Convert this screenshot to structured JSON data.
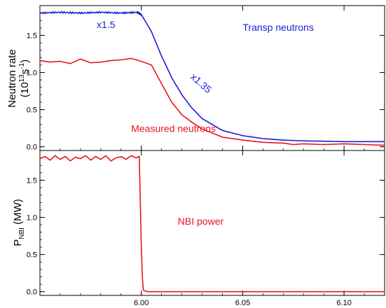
{
  "colors": {
    "measured": "#e8141c",
    "transp": "#1c1cd8",
    "nbi": "#e8141c",
    "axis": "#000000"
  },
  "chart_data": [
    {
      "type": "line",
      "ylabel_main": "Neutron rate",
      "ylabel_sub_prefix": "(10",
      "ylabel_sub_exp1": "13",
      "ylabel_sub_mid": "s",
      "ylabel_sub_exp2": "-1",
      "ylabel_sub_suffix": ")",
      "xlim": [
        5.95,
        6.12
      ],
      "ylim": [
        -0.05,
        1.9
      ],
      "xticks": [
        "6.00",
        "6.05",
        "6.10"
      ],
      "xtick_values": [
        6.0,
        6.05,
        6.1
      ],
      "yticks": [
        "0.0",
        "0.5",
        "1.0",
        "1.5"
      ],
      "ytick_values": [
        0.0,
        0.5,
        1.0,
        1.5
      ],
      "annotations": [
        {
          "text": "x1.5",
          "x": 5.978,
          "y": 1.6,
          "color": "transp",
          "rotate": 0
        },
        {
          "text": "Transp neutrons",
          "x": 6.05,
          "y": 1.56,
          "color": "transp",
          "rotate": 0
        },
        {
          "text": "x1.35",
          "x": 6.024,
          "y": 0.93,
          "color": "transp",
          "rotate": 42
        },
        {
          "text": "Measured neutrons",
          "x": 5.995,
          "y": 0.2,
          "color": "measured",
          "rotate": 0
        }
      ],
      "series": [
        {
          "color": "transp",
          "x": [
            5.95,
            5.96,
            5.97,
            5.98,
            5.99,
            5.998,
            6.0,
            6.005,
            6.01,
            6.015,
            6.02,
            6.025,
            6.03,
            6.04,
            6.05,
            6.06,
            6.07,
            6.08,
            6.09,
            6.1,
            6.12
          ],
          "y": [
            1.8,
            1.81,
            1.8,
            1.81,
            1.8,
            1.81,
            1.78,
            1.55,
            1.22,
            0.93,
            0.7,
            0.52,
            0.38,
            0.22,
            0.15,
            0.11,
            0.09,
            0.08,
            0.075,
            0.07,
            0.07
          ],
          "jitter": true
        },
        {
          "color": "measured",
          "x": [
            5.95,
            5.955,
            5.96,
            5.965,
            5.97,
            5.975,
            5.98,
            5.985,
            5.99,
            5.995,
            6.0,
            6.005,
            6.01,
            6.015,
            6.02,
            6.025,
            6.03,
            6.04,
            6.05,
            6.06,
            6.07,
            6.075,
            6.08,
            6.09,
            6.1,
            6.11,
            6.12
          ],
          "y": [
            1.16,
            1.14,
            1.15,
            1.12,
            1.18,
            1.13,
            1.14,
            1.16,
            1.17,
            1.19,
            1.15,
            1.1,
            0.85,
            0.6,
            0.43,
            0.33,
            0.24,
            0.13,
            0.09,
            0.06,
            0.05,
            0.03,
            0.04,
            0.03,
            0.04,
            0.03,
            0.02
          ],
          "jitter": false
        }
      ]
    },
    {
      "type": "line",
      "ylabel_main": "P",
      "ylabel_sub": "NBI",
      "ylabel_unit": " (MW)",
      "xlim": [
        5.95,
        6.12
      ],
      "ylim": [
        -0.05,
        1.9
      ],
      "xticks": [
        "6.00",
        "6.05",
        "6.10"
      ],
      "xtick_values": [
        6.0,
        6.05,
        6.1
      ],
      "yticks": [
        "0.0",
        "0.5",
        "1.0",
        "1.5"
      ],
      "ytick_values": [
        0.0,
        0.5,
        1.0,
        1.5
      ],
      "annotations": [
        {
          "text": "NBI power",
          "x": 6.018,
          "y": 0.9,
          "color": "nbi",
          "rotate": 0
        }
      ],
      "series": [
        {
          "color": "nbi",
          "x": [
            5.95,
            5.9525,
            5.955,
            5.9575,
            5.96,
            5.9625,
            5.965,
            5.9675,
            5.97,
            5.9725,
            5.975,
            5.9775,
            5.98,
            5.9825,
            5.985,
            5.9875,
            5.99,
            5.9925,
            5.995,
            5.9975,
            5.999,
            5.9995,
            6.0,
            6.0005,
            6.001,
            6.003,
            6.12
          ],
          "y": [
            1.79,
            1.82,
            1.77,
            1.83,
            1.78,
            1.82,
            1.76,
            1.81,
            1.79,
            1.83,
            1.77,
            1.82,
            1.78,
            1.83,
            1.76,
            1.8,
            1.82,
            1.78,
            1.83,
            1.8,
            1.82,
            1.2,
            0.6,
            0.2,
            0.02,
            0.0,
            0.0
          ],
          "jitter": false
        }
      ]
    }
  ]
}
